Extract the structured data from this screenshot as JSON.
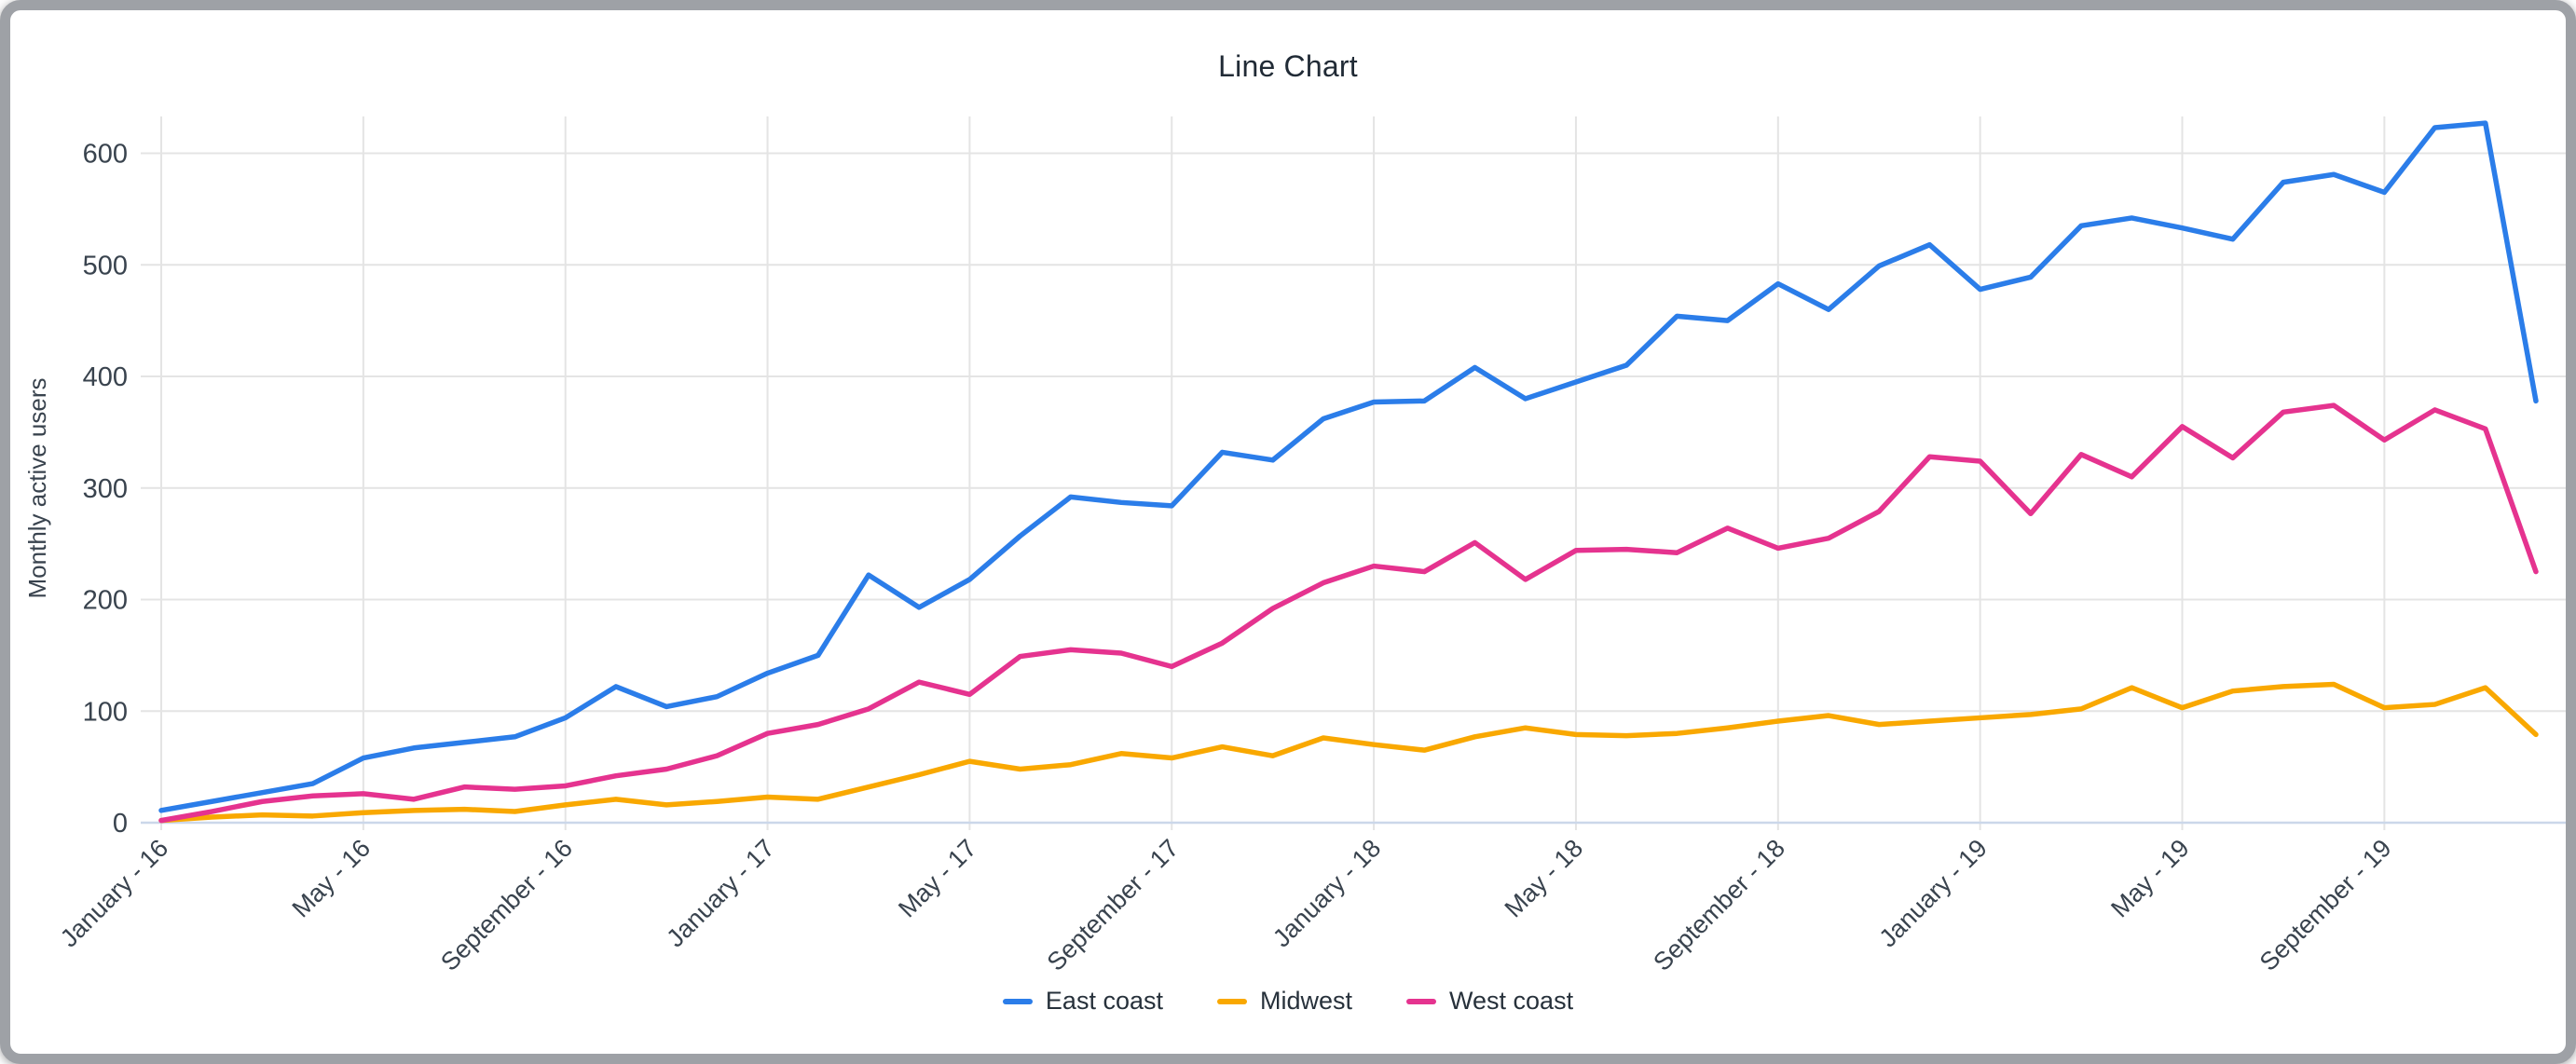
{
  "chart_data": {
    "type": "line",
    "title": "Line Chart",
    "ylabel": "Monthly active users",
    "xlabel": "",
    "grid": true,
    "legend_position": "bottom",
    "ylim": [
      0,
      640
    ],
    "y_ticks": [
      0,
      100,
      200,
      300,
      400,
      500,
      600
    ],
    "x_tick_every": 4,
    "visible_x_tick_labels": [
      "January - 16",
      "May - 16",
      "September - 16",
      "January - 17",
      "May - 17",
      "September - 17",
      "January - 18",
      "May - 18",
      "September - 18",
      "January - 19",
      "May - 19",
      "September - 19"
    ],
    "categories": [
      "January - 16",
      "February - 16",
      "March - 16",
      "April - 16",
      "May - 16",
      "June - 16",
      "July - 16",
      "August - 16",
      "September - 16",
      "October - 16",
      "November - 16",
      "December - 16",
      "January - 17",
      "February - 17",
      "March - 17",
      "April - 17",
      "May - 17",
      "June - 17",
      "July - 17",
      "August - 17",
      "September - 17",
      "October - 17",
      "November - 17",
      "December - 17",
      "January - 18",
      "February - 18",
      "March - 18",
      "April - 18",
      "May - 18",
      "June - 18",
      "July - 18",
      "August - 18",
      "September - 18",
      "October - 18",
      "November - 18",
      "December - 18",
      "January - 19",
      "February - 19",
      "March - 19",
      "April - 19",
      "May - 19",
      "June - 19",
      "July - 19",
      "August - 19",
      "September - 19",
      "October - 19",
      "November - 19",
      "December - 19"
    ],
    "series": [
      {
        "name": "East coast",
        "color": "#2b7de9",
        "values": [
          11,
          19,
          27,
          35,
          58,
          67,
          72,
          77,
          94,
          122,
          104,
          113,
          134,
          150,
          222,
          193,
          218,
          257,
          292,
          287,
          284,
          332,
          325,
          362,
          377,
          378,
          408,
          380,
          395,
          410,
          454,
          450,
          483,
          460,
          499,
          518,
          478,
          489,
          535,
          542,
          533,
          523,
          574,
          581,
          565,
          623,
          627,
          378
        ]
      },
      {
        "name": "Midwest",
        "color": "#f9a800",
        "values": [
          2,
          5,
          7,
          6,
          9,
          11,
          12,
          10,
          16,
          21,
          16,
          19,
          23,
          21,
          32,
          43,
          55,
          48,
          52,
          62,
          58,
          68,
          60,
          76,
          70,
          65,
          77,
          85,
          79,
          78,
          80,
          85,
          91,
          96,
          88,
          91,
          94,
          97,
          102,
          121,
          103,
          118,
          122,
          124,
          103,
          106,
          121,
          79
        ]
      },
      {
        "name": "West coast",
        "color": "#e5338f",
        "values": [
          2,
          10,
          19,
          24,
          26,
          21,
          32,
          30,
          33,
          42,
          48,
          60,
          80,
          88,
          102,
          126,
          115,
          149,
          155,
          152,
          140,
          161,
          192,
          215,
          230,
          225,
          251,
          218,
          244,
          245,
          242,
          264,
          246,
          255,
          279,
          328,
          324,
          277,
          330,
          310,
          355,
          327,
          368,
          374,
          343,
          370,
          353,
          225
        ]
      }
    ],
    "colors": {
      "gridline": "#e4e4e4",
      "baseline": "#cbd7ea",
      "tick_text": "#39434e",
      "title_text": "#212b36"
    }
  }
}
